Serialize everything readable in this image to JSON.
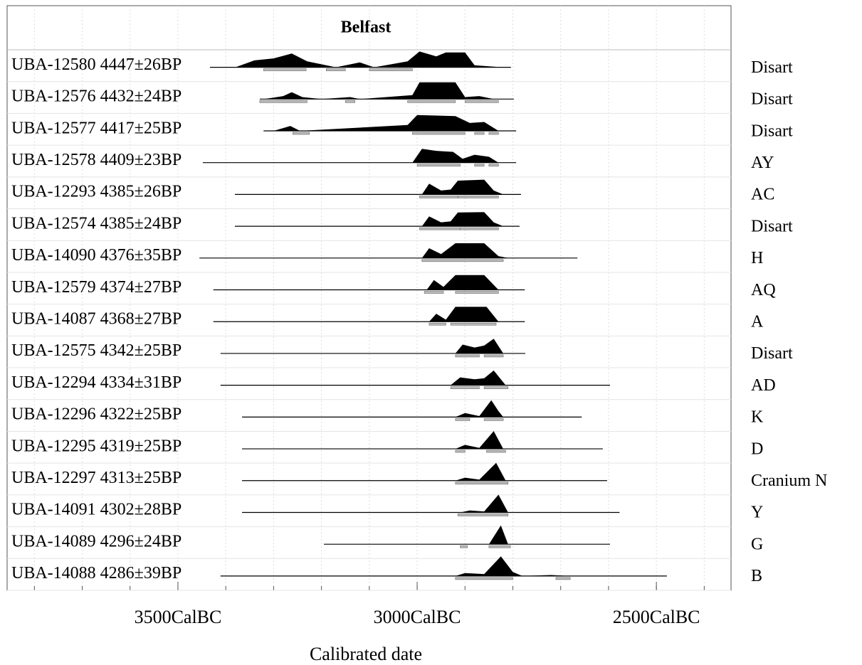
{
  "chart_data": {
    "type": "multiplot",
    "title": "Belfast",
    "xlabel": "Calibrated date",
    "xlim": [
      3857,
      2344
    ],
    "xticks": [
      {
        "value": 3500,
        "label": "3500CalBC"
      },
      {
        "value": 3000,
        "label": "3000CalBC"
      },
      {
        "value": 2500,
        "label": "2500CalBC"
      }
    ],
    "minor_xticks": [
      3800,
      3700,
      3600,
      3500,
      3400,
      3300,
      3200,
      3100,
      3000,
      2900,
      2800,
      2700,
      2600,
      2500,
      2400
    ],
    "grid": true,
    "color": "#000000",
    "range_color": "#bbbbbb",
    "rows": [
      {
        "label": "UBA-12580 4447±26BP",
        "context": "Disart",
        "span": [
          3433,
          2804
        ],
        "distribution": [
          [
            3380,
            0
          ],
          [
            3340,
            0.35
          ],
          [
            3300,
            0.45
          ],
          [
            3262,
            0.7
          ],
          [
            3230,
            0.3
          ],
          [
            3190,
            0.1
          ],
          [
            3170,
            0
          ],
          [
            3120,
            0.25
          ],
          [
            3090,
            0
          ],
          [
            3020,
            0.3
          ],
          [
            2995,
            0.8
          ],
          [
            2960,
            0.55
          ],
          [
            2940,
            0.75
          ],
          [
            2900,
            0.75
          ],
          [
            2880,
            0.1
          ],
          [
            2850,
            0.05
          ],
          [
            2820,
            0
          ]
        ],
        "ranges": [
          [
            3321,
            3232
          ],
          [
            3190,
            3150
          ],
          [
            3100,
            3010
          ]
        ]
      },
      {
        "label": "UBA-12576 4432±24BP",
        "context": "Disart",
        "span": [
          3329,
          2798
        ],
        "distribution": [
          [
            3320,
            0
          ],
          [
            3280,
            0.15
          ],
          [
            3262,
            0.35
          ],
          [
            3240,
            0.1
          ],
          [
            3200,
            0
          ],
          [
            3140,
            0.1
          ],
          [
            3120,
            0
          ],
          [
            3010,
            0.2
          ],
          [
            2995,
            0.85
          ],
          [
            2920,
            0.85
          ],
          [
            2900,
            0.1
          ],
          [
            2870,
            0.15
          ],
          [
            2840,
            0
          ]
        ],
        "ranges": [
          [
            3329,
            3230
          ],
          [
            3150,
            3130
          ],
          [
            3020,
            2920
          ],
          [
            2900,
            2830
          ]
        ]
      },
      {
        "label": "UBA-12577 4417±25BP",
        "context": "Disart",
        "span": [
          3321,
          2793
        ],
        "distribution": [
          [
            3300,
            0
          ],
          [
            3265,
            0.25
          ],
          [
            3245,
            0
          ],
          [
            3020,
            0.3
          ],
          [
            3000,
            0.8
          ],
          [
            2920,
            0.75
          ],
          [
            2890,
            0.4
          ],
          [
            2860,
            0.45
          ],
          [
            2830,
            0
          ]
        ],
        "ranges": [
          [
            3260,
            3225
          ],
          [
            3010,
            2900
          ],
          [
            2880,
            2860
          ],
          [
            2850,
            2830
          ]
        ]
      },
      {
        "label": "UBA-12578 4409±23BP",
        "context": "AY",
        "span": [
          3448,
          2793
        ],
        "distribution": [
          [
            3010,
            0
          ],
          [
            2990,
            0.7
          ],
          [
            2960,
            0.6
          ],
          [
            2925,
            0.55
          ],
          [
            2905,
            0.2
          ],
          [
            2880,
            0.4
          ],
          [
            2850,
            0.3
          ],
          [
            2830,
            0
          ]
        ],
        "ranges": [
          [
            3000,
            2910
          ],
          [
            2880,
            2860
          ],
          [
            2850,
            2830
          ]
        ]
      },
      {
        "label": "UBA-12293 4385±26BP",
        "context": "AC",
        "span": [
          3381,
          2783
        ],
        "distribution": [
          [
            2990,
            0
          ],
          [
            2975,
            0.55
          ],
          [
            2950,
            0.2
          ],
          [
            2930,
            0.25
          ],
          [
            2915,
            0.7
          ],
          [
            2860,
            0.75
          ],
          [
            2840,
            0.2
          ],
          [
            2820,
            0
          ]
        ],
        "ranges": [
          [
            2995,
            2915
          ],
          [
            2915,
            2830
          ]
        ]
      },
      {
        "label": "UBA-12574 4385±24BP",
        "context": "Disart",
        "span": [
          3381,
          2786
        ],
        "distribution": [
          [
            2990,
            0
          ],
          [
            2975,
            0.5
          ],
          [
            2950,
            0.2
          ],
          [
            2930,
            0.25
          ],
          [
            2915,
            0.7
          ],
          [
            2860,
            0.72
          ],
          [
            2840,
            0.2
          ],
          [
            2820,
            0
          ]
        ],
        "ranges": [
          [
            2995,
            2910
          ],
          [
            2910,
            2830
          ]
        ]
      },
      {
        "label": "UBA-14090 4376±35BP",
        "context": "H",
        "span": [
          3455,
          2665
        ],
        "distribution": [
          [
            2990,
            0
          ],
          [
            2975,
            0.5
          ],
          [
            2950,
            0.2
          ],
          [
            2920,
            0.75
          ],
          [
            2860,
            0.75
          ],
          [
            2830,
            0.1
          ],
          [
            2810,
            0
          ]
        ],
        "ranges": [
          [
            2990,
            2820
          ]
        ]
      },
      {
        "label": "UBA-12579 4374±27BP",
        "context": "AQ",
        "span": [
          3426,
          2775
        ],
        "distribution": [
          [
            2980,
            0
          ],
          [
            2965,
            0.5
          ],
          [
            2945,
            0.15
          ],
          [
            2920,
            0.75
          ],
          [
            2860,
            0.75
          ],
          [
            2830,
            0
          ]
        ],
        "ranges": [
          [
            2985,
            2945
          ],
          [
            2920,
            2830
          ]
        ]
      },
      {
        "label": "UBA-14087 4368±27BP",
        "context": "A",
        "span": [
          3426,
          2775
        ],
        "distribution": [
          [
            2975,
            0
          ],
          [
            2960,
            0.4
          ],
          [
            2940,
            0.1
          ],
          [
            2920,
            0.75
          ],
          [
            2855,
            0.75
          ],
          [
            2830,
            0
          ]
        ],
        "ranges": [
          [
            2975,
            2940
          ],
          [
            2930,
            2835
          ]
        ]
      },
      {
        "label": "UBA-12575 4342±25BP",
        "context": "Disart",
        "span": [
          3411,
          2774
        ],
        "distribution": [
          [
            2920,
            0
          ],
          [
            2905,
            0.45
          ],
          [
            2880,
            0.3
          ],
          [
            2860,
            0.4
          ],
          [
            2840,
            0.75
          ],
          [
            2820,
            0
          ]
        ],
        "ranges": [
          [
            2920,
            2870
          ],
          [
            2860,
            2820
          ]
        ]
      },
      {
        "label": "UBA-12294 4334±31BP",
        "context": "AD",
        "span": [
          3411,
          2597
        ],
        "distribution": [
          [
            2930,
            0
          ],
          [
            2910,
            0.4
          ],
          [
            2880,
            0.3
          ],
          [
            2860,
            0.35
          ],
          [
            2840,
            0.75
          ],
          [
            2815,
            0
          ]
        ],
        "ranges": [
          [
            2930,
            2870
          ],
          [
            2860,
            2810
          ]
        ]
      },
      {
        "label": "UBA-12296 4322±25BP",
        "context": "K",
        "span": [
          3366,
          2656
        ],
        "distribution": [
          [
            2920,
            0
          ],
          [
            2900,
            0.2
          ],
          [
            2870,
            0.05
          ],
          [
            2845,
            0.85
          ],
          [
            2830,
            0.3
          ],
          [
            2820,
            0
          ]
        ],
        "ranges": [
          [
            2920,
            2890
          ],
          [
            2860,
            2820
          ]
        ]
      },
      {
        "label": "UBA-12295 4319±25BP",
        "context": "D",
        "span": [
          3366,
          2612
        ],
        "distribution": [
          [
            2920,
            0
          ],
          [
            2900,
            0.2
          ],
          [
            2870,
            0.05
          ],
          [
            2840,
            0.9
          ],
          [
            2820,
            0
          ]
        ],
        "ranges": [
          [
            2920,
            2900
          ],
          [
            2855,
            2815
          ]
        ]
      },
      {
        "label": "UBA-12297 4313±25BP",
        "context": "Cranium N",
        "span": [
          3366,
          2603
        ],
        "distribution": [
          [
            2920,
            0
          ],
          [
            2900,
            0.15
          ],
          [
            2870,
            0.05
          ],
          [
            2835,
            0.9
          ],
          [
            2815,
            0
          ]
        ],
        "ranges": [
          [
            2920,
            2810
          ]
        ]
      },
      {
        "label": "UBA-14091 4302±28BP",
        "context": "Y",
        "span": [
          3366,
          2577
        ],
        "distribution": [
          [
            2910,
            0
          ],
          [
            2890,
            0.1
          ],
          [
            2860,
            0.05
          ],
          [
            2830,
            0.9
          ],
          [
            2810,
            0
          ]
        ],
        "ranges": [
          [
            2915,
            2810
          ]
        ]
      },
      {
        "label": "UBA-14089 4296±24BP",
        "context": "G",
        "span": [
          3195,
          2597
        ],
        "distribution": [
          [
            2850,
            0
          ],
          [
            2825,
            0.95
          ],
          [
            2810,
            0
          ]
        ],
        "ranges": [
          [
            2910,
            2895
          ],
          [
            2850,
            2805
          ]
        ]
      },
      {
        "label": "UBA-14088 4286±39BP",
        "context": "B",
        "span": [
          3411,
          2478
        ],
        "distribution": [
          [
            2920,
            0
          ],
          [
            2900,
            0.15
          ],
          [
            2860,
            0.1
          ],
          [
            2825,
            1
          ],
          [
            2800,
            0.2
          ],
          [
            2780,
            0
          ],
          [
            2720,
            0.05
          ],
          [
            2680,
            0
          ]
        ],
        "ranges": [
          [
            2920,
            2800
          ],
          [
            2710,
            2680
          ]
        ]
      }
    ]
  }
}
